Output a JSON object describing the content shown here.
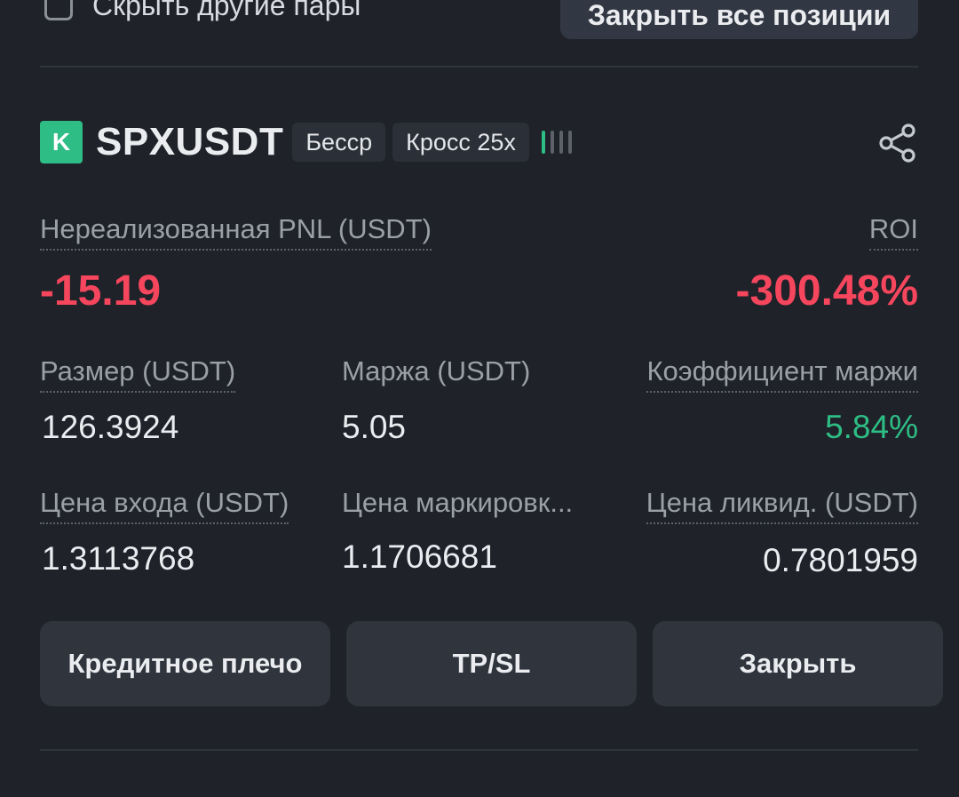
{
  "top": {
    "hide_pairs_label": "Скрыть другие пары",
    "close_all_label": "Закрыть все позиции"
  },
  "position": {
    "coin_letter": "K",
    "symbol": "SPXUSDT",
    "tags": [
      "Бесср",
      "Кросс 25x"
    ],
    "signal_colors": [
      "#2ebd85",
      "#5c616a",
      "#5c616a",
      "#5c616a"
    ],
    "pnl_label": "Нереализованная PNL (USDT)",
    "roi_label": "ROI",
    "pnl_value": "-15.19",
    "roi_value": "-300.48%",
    "size_label": "Размер (USDT)",
    "size_value": "126.3924",
    "margin_label": "Маржа (USDT)",
    "margin_value": "5.05",
    "margin_ratio_label": "Коэффициент маржи",
    "margin_ratio_value": "5.84%",
    "entry_label": "Цена входа (USDT)",
    "entry_value": "1.3113768",
    "mark_label": "Цена маркировк...",
    "mark_value": "1.1706681",
    "liq_label": "Цена ликвид. (USDT)",
    "liq_value": "0.7801959"
  },
  "buttons": {
    "leverage_label": "Кредитное плечо",
    "tpsl_label": "TP/SL",
    "close_label": "Закрыть"
  },
  "colors": {
    "negative": "#f6465d",
    "positive": "#2ebd85",
    "background": "#1f2229"
  }
}
